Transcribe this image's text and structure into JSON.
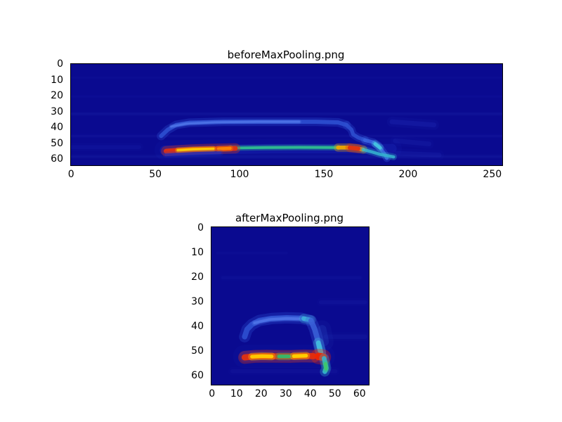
{
  "figure": {
    "background": "#ffffff"
  },
  "chart_data": [
    {
      "id": "before",
      "type": "heatmap",
      "title": "beforeMaxPooling.png",
      "colormap": "jet",
      "cols": 256,
      "rows": 64,
      "x_range": [
        0,
        255
      ],
      "y_range": [
        0,
        63
      ],
      "x_ticks": [
        0,
        50,
        100,
        150,
        200,
        250
      ],
      "y_ticks": [
        0,
        10,
        20,
        30,
        40,
        50,
        60
      ],
      "background": "#0a0a90",
      "noise": [
        {
          "points": [
            [
              0,
              31
            ],
            [
              255,
              31
            ]
          ],
          "color": "#3a4ad0",
          "width": 1.4,
          "alpha": 0.1
        },
        {
          "points": [
            [
              0,
              45
            ],
            [
              255,
              45
            ]
          ],
          "color": "#3a4ad0",
          "width": 1.4,
          "alpha": 0.08
        },
        {
          "points": [
            [
              0,
              58
            ],
            [
              255,
              58
            ]
          ],
          "color": "#3a4ad0",
          "width": 1.6,
          "alpha": 0.1
        },
        {
          "points": [
            [
              0,
              20
            ],
            [
              255,
              20
            ]
          ],
          "color": "#3a4ad0",
          "width": 1.2,
          "alpha": 0.06
        },
        {
          "points": [
            [
              0,
              8
            ],
            [
              255,
              8
            ]
          ],
          "color": "#3a4ad0",
          "width": 1.2,
          "alpha": 0.05
        },
        {
          "points": [
            [
              190,
              36
            ],
            [
              215,
              38
            ]
          ],
          "color": "#2a3cc8",
          "width": 3.0,
          "alpha": 0.22
        },
        {
          "points": [
            [
              192,
              48
            ],
            [
              212,
              50
            ]
          ],
          "color": "#2a3cc8",
          "width": 3.0,
          "alpha": 0.16
        },
        {
          "points": [
            [
              193,
              56
            ],
            [
              218,
              57
            ]
          ],
          "color": "#2a3cc8",
          "width": 3.0,
          "alpha": 0.16
        },
        {
          "points": [
            [
              0,
              52
            ],
            [
              40,
              52
            ]
          ],
          "color": "#2a3cc8",
          "width": 2.5,
          "alpha": 0.12
        }
      ],
      "strokes": [
        {
          "points": [
            [
              55,
              54
            ],
            [
              120,
              53
            ],
            [
              190,
              53
            ]
          ],
          "color": "#1f30c0",
          "width": 6.0,
          "alpha": 0.3
        },
        {
          "points": [
            [
              53,
              45
            ],
            [
              57,
              41
            ],
            [
              62,
              38
            ],
            [
              70,
              36.6
            ],
            [
              90,
              36
            ],
            [
              120,
              36
            ],
            [
              145,
              36
            ],
            [
              158,
              36.4
            ],
            [
              163,
              38
            ]
          ],
          "color": "#2c4ecf",
          "width": 2.6,
          "alpha": 0.92
        },
        {
          "points": [
            [
              59,
              39
            ],
            [
              68,
              37.2
            ],
            [
              85,
              36.3
            ],
            [
              110,
              36
            ],
            [
              135,
              36
            ]
          ],
          "color": "#4f74e8",
          "width": 1.3,
          "alpha": 0.85
        },
        {
          "points": [
            [
              163,
              38
            ],
            [
              166,
              41
            ],
            [
              167,
              44
            ],
            [
              170,
              46
            ],
            [
              174,
              47.6
            ]
          ],
          "color": "#2c4ecf",
          "width": 2.4,
          "alpha": 0.9
        },
        {
          "points": [
            [
              174,
              47.6
            ],
            [
              179,
              49
            ],
            [
              182,
              51
            ],
            [
              184,
              54
            ],
            [
              186,
              57
            ],
            [
              187,
              59
            ]
          ],
          "color": "#3a63e0",
          "width": 2.3,
          "alpha": 0.9
        },
        {
          "points": [
            [
              180,
              50
            ],
            [
              183,
              52.5
            ]
          ],
          "color": "#45c8e0",
          "width": 2.2,
          "alpha": 0.9
        },
        {
          "points": [
            [
              94,
              52.6
            ],
            [
              115,
              52.3
            ],
            [
              135,
              52.2
            ],
            [
              158,
              52.3
            ]
          ],
          "color": "#2fbf8f",
          "width": 1.7,
          "alpha": 0.95
        },
        {
          "points": [
            [
              56,
              54.6
            ],
            [
              62,
              54.1
            ],
            [
              70,
              53.6
            ],
            [
              80,
              53.2
            ],
            [
              90,
              53
            ],
            [
              97,
              52.8
            ]
          ],
          "color": "#e23210",
          "width": 3.1,
          "alpha": 0.95
        },
        {
          "points": [
            [
              63,
              54
            ],
            [
              72,
              53.4
            ],
            [
              84,
              53.1
            ]
          ],
          "color": "#ffcc00",
          "width": 1.7,
          "alpha": 0.95
        },
        {
          "points": [
            [
              87,
              53.1
            ],
            [
              94,
              52.8
            ]
          ],
          "color": "#ff8a00",
          "width": 1.9,
          "alpha": 0.9
        },
        {
          "points": [
            [
              158,
              52.3
            ],
            [
              164,
              52.3
            ],
            [
              169,
              52.8
            ],
            [
              173,
              53.6
            ]
          ],
          "color": "#f0a800",
          "width": 2.5,
          "alpha": 0.95
        },
        {
          "points": [
            [
              165,
              52.4
            ],
            [
              170,
              53
            ]
          ],
          "color": "#e23210",
          "width": 2.7,
          "alpha": 0.95
        },
        {
          "points": [
            [
              173,
              53.6
            ],
            [
              178,
              55
            ],
            [
              183,
              56.6
            ],
            [
              188,
              57.6
            ],
            [
              191,
              58.2
            ]
          ],
          "color": "#35b6cf",
          "width": 2.0,
          "alpha": 0.85
        },
        {
          "points": [
            [
              56,
              56.8
            ],
            [
              72,
              56.2
            ],
            [
              88,
              55.6
            ]
          ],
          "color": "#2436c8",
          "width": 2.0,
          "alpha": 0.5
        }
      ]
    },
    {
      "id": "after",
      "type": "heatmap",
      "title": "afterMaxPooling.png",
      "colormap": "jet",
      "cols": 64,
      "rows": 64,
      "x_range": [
        0,
        63
      ],
      "y_range": [
        0,
        63
      ],
      "x_ticks": [
        0,
        10,
        20,
        30,
        40,
        50,
        60
      ],
      "y_ticks": [
        0,
        10,
        20,
        30,
        40,
        50,
        60
      ],
      "background": "#0a0a90",
      "noise": [
        {
          "points": [
            [
              4,
              20
            ],
            [
              60,
              20
            ]
          ],
          "color": "#3a4ad0",
          "width": 1.2,
          "alpha": 0.07
        },
        {
          "points": [
            [
              44,
              30
            ],
            [
              62,
              30
            ]
          ],
          "color": "#3a4ad0",
          "width": 1.6,
          "alpha": 0.09
        },
        {
          "points": [
            [
              46,
              44
            ],
            [
              62,
              44
            ]
          ],
          "color": "#3a4ad0",
          "width": 1.8,
          "alpha": 0.1
        },
        {
          "points": [
            [
              8,
              58
            ],
            [
              50,
              58
            ]
          ],
          "color": "#3a4ad0",
          "width": 1.6,
          "alpha": 0.08
        },
        {
          "points": [
            [
              2,
              10
            ],
            [
              30,
              10
            ]
          ],
          "color": "#3a4ad0",
          "width": 1.2,
          "alpha": 0.05
        }
      ],
      "strokes": [
        {
          "points": [
            [
              13,
              52
            ],
            [
              30,
              52
            ],
            [
              45,
              52
            ]
          ],
          "color": "#1f30c0",
          "width": 4.5,
          "alpha": 0.3
        },
        {
          "points": [
            [
              13,
              44
            ],
            [
              14,
              41
            ],
            [
              16,
              39
            ],
            [
              19,
              37.4
            ],
            [
              24,
              36.6
            ],
            [
              30,
              36.3
            ],
            [
              36,
              36.5
            ],
            [
              39,
              37.2
            ]
          ],
          "color": "#2c4ecf",
          "width": 2.2,
          "alpha": 0.92
        },
        {
          "points": [
            [
              17,
              38.4
            ],
            [
              23,
              37
            ],
            [
              30,
              36.6
            ],
            [
              35,
              36.7
            ]
          ],
          "color": "#4f74e8",
          "width": 1.1,
          "alpha": 0.85
        },
        {
          "points": [
            [
              37,
              36.6
            ],
            [
              40,
              37.2
            ]
          ],
          "color": "#3fb5db",
          "width": 1.8,
          "alpha": 0.85
        },
        {
          "points": [
            [
              40,
              37.5
            ],
            [
              41.5,
              41
            ],
            [
              42.5,
              44.5
            ],
            [
              43.2,
              47.5
            ],
            [
              43.8,
              50
            ]
          ],
          "color": "#3a5fd8",
          "width": 2.2,
          "alpha": 0.9
        },
        {
          "points": [
            [
              43,
              46.5
            ],
            [
              44,
              50.5
            ]
          ],
          "color": "#45c8e0",
          "width": 2.0,
          "alpha": 0.9
        },
        {
          "points": [
            [
              44.5,
              41
            ],
            [
              45.5,
              46
            ]
          ],
          "color": "#2f57cc",
          "width": 3.5,
          "alpha": 0.22
        },
        {
          "points": [
            [
              13,
              52.4
            ],
            [
              17,
              52
            ],
            [
              22,
              51.9
            ],
            [
              27,
              52
            ],
            [
              32,
              52
            ],
            [
              37,
              51.8
            ],
            [
              41,
              51.9
            ]
          ],
          "color": "#e23210",
          "width": 2.5,
          "alpha": 0.95
        },
        {
          "points": [
            [
              16,
              52.1
            ],
            [
              20,
              51.9
            ],
            [
              24,
              52
            ]
          ],
          "color": "#ffcc00",
          "width": 1.5,
          "alpha": 0.95
        },
        {
          "points": [
            [
              27,
              52
            ],
            [
              31,
              52
            ]
          ],
          "color": "#2fbf6f",
          "width": 1.5,
          "alpha": 0.9
        },
        {
          "points": [
            [
              33,
              51.9
            ],
            [
              38,
              51.7
            ]
          ],
          "color": "#ffd200",
          "width": 1.5,
          "alpha": 0.95
        },
        {
          "points": [
            [
              43,
              52
            ],
            [
              45,
              52.3
            ]
          ],
          "color": "#ee2600",
          "width": 3.0,
          "alpha": 0.95
        },
        {
          "points": [
            [
              45.3,
              52.8
            ],
            [
              45.8,
              54.8
            ],
            [
              46.2,
              56.8
            ],
            [
              45.6,
              58.2
            ]
          ],
          "color": "#35b6cf",
          "width": 1.9,
          "alpha": 0.9
        },
        {
          "points": [
            [
              45.9,
              55
            ],
            [
              46.1,
              57
            ]
          ],
          "color": "#3ecb5e",
          "width": 1.4,
          "alpha": 0.8
        }
      ]
    }
  ]
}
